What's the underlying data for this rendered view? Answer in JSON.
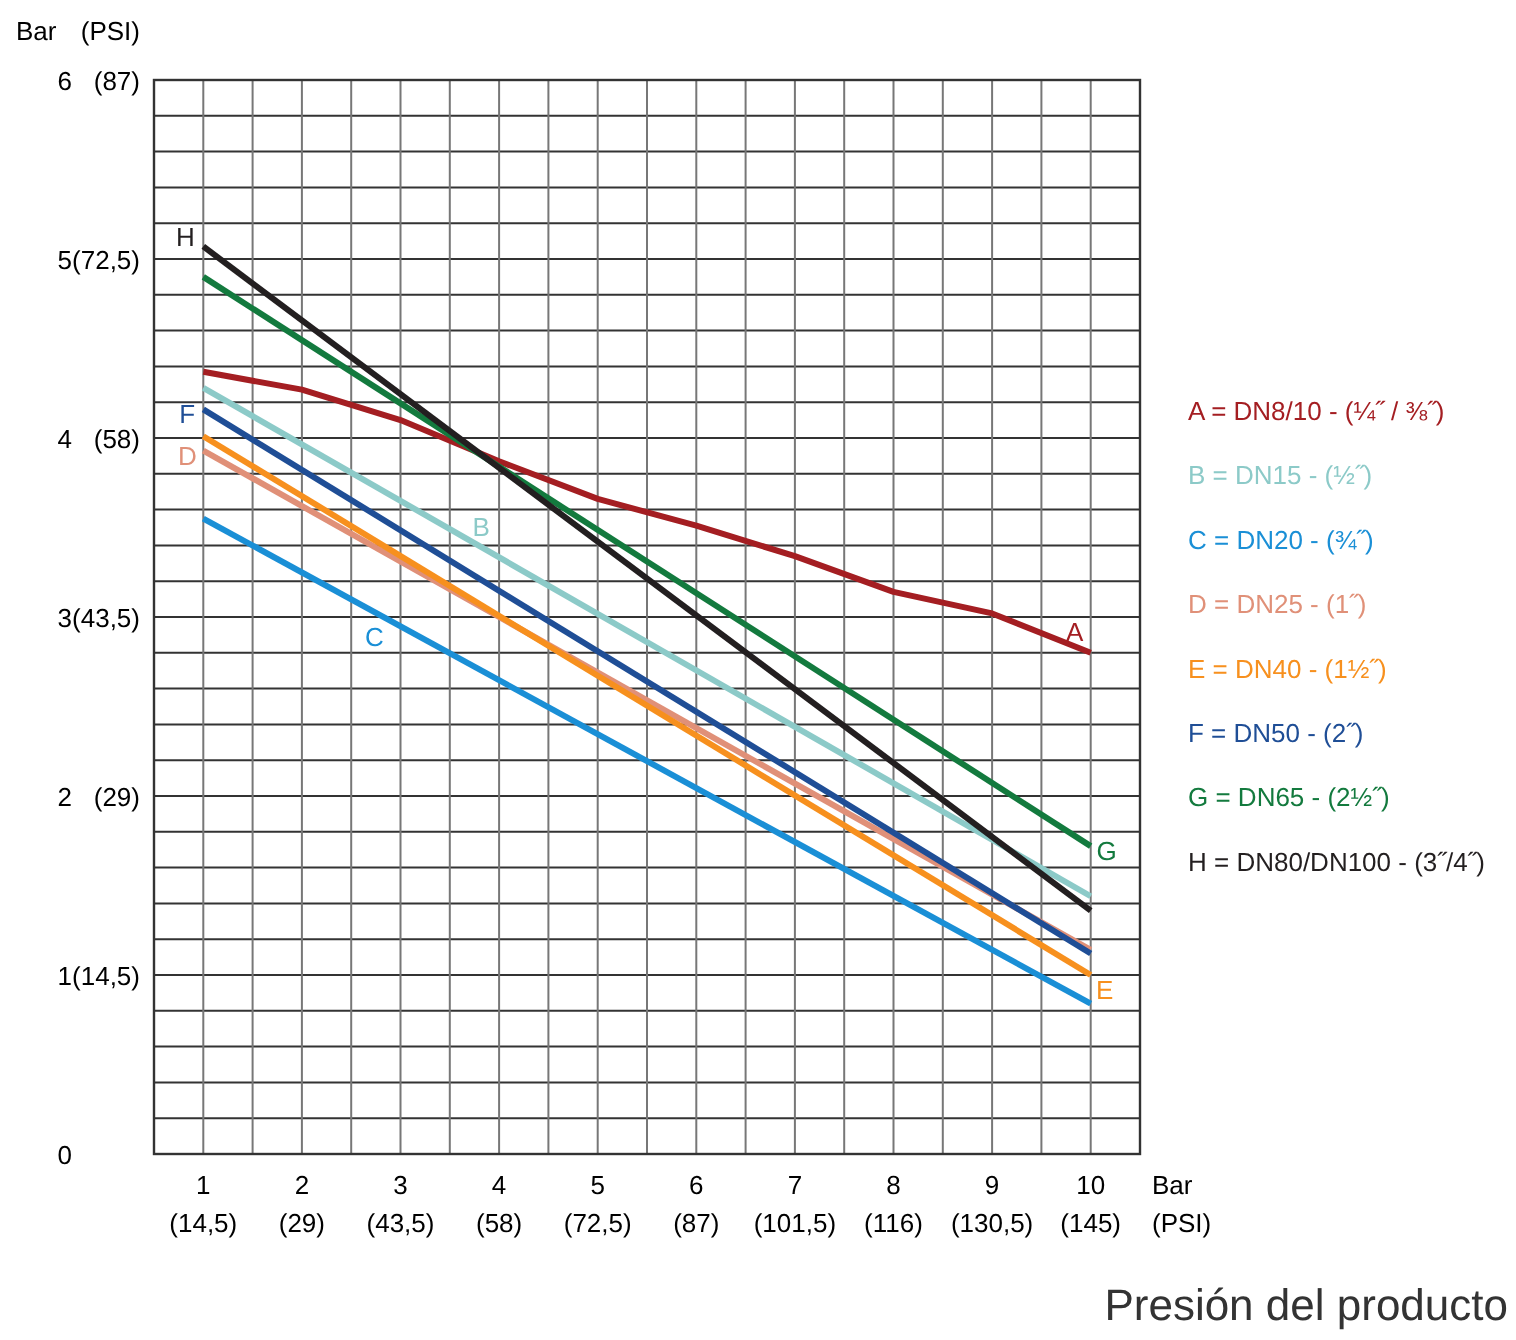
{
  "chart_data": {
    "type": "line",
    "xlabel": "Bar",
    "x2label": "(PSI)",
    "ylabel": "Bar",
    "y2label": "(PSI)",
    "xlim": [
      0.5,
      10.5
    ],
    "ylim": [
      0,
      6
    ],
    "x2lim": [
      7.25,
      152.25
    ],
    "y2lim": [
      0,
      87
    ],
    "xticks": [
      {
        "value": 0.5,
        "label": null
      },
      1,
      {
        "value": 1.5,
        "label": null
      },
      2,
      {
        "value": 2.5,
        "label": null
      },
      3,
      {
        "value": 3.5,
        "label": null
      },
      4,
      {
        "value": 4.5,
        "label": null
      },
      5,
      {
        "value": 5.5,
        "label": null
      },
      6,
      {
        "value": 6.5,
        "label": null
      },
      7,
      {
        "value": 7.5,
        "label": null
      },
      8,
      {
        "value": 8.5,
        "label": null
      },
      9,
      {
        "value": 9.5,
        "label": null
      },
      10,
      {
        "value": 10.5,
        "label": null
      }
    ],
    "x2ticks": [
      {
        "value": 14.5,
        "label": "(14,5)"
      },
      {
        "value": 29,
        "label": "(29)"
      },
      {
        "value": 43.5,
        "label": "(43,5)"
      },
      {
        "value": 58,
        "label": "(58)"
      },
      {
        "value": 72.5,
        "label": "(72,5)"
      },
      {
        "value": 87,
        "label": "(87)"
      },
      {
        "value": 101.5,
        "label": "(101,5)"
      },
      {
        "value": 116,
        "label": "(116)"
      },
      {
        "value": 130.5,
        "label": "(130,5)"
      },
      {
        "value": 145,
        "label": "(145)"
      }
    ],
    "yticks": [
      0,
      {
        "value": 0.2,
        "label": null
      },
      {
        "value": 0.4,
        "label": null
      },
      {
        "value": 0.6,
        "label": null
      },
      {
        "value": 0.8,
        "label": null
      },
      1,
      {
        "value": 1.2,
        "label": null
      },
      {
        "value": 1.4,
        "label": null
      },
      {
        "value": 1.6,
        "label": null
      },
      {
        "value": 1.8,
        "label": null
      },
      2,
      {
        "value": 2.2,
        "label": null
      },
      {
        "value": 2.4,
        "label": null
      },
      {
        "value": 2.6,
        "label": null
      },
      {
        "value": 2.8,
        "label": null
      },
      3,
      {
        "value": 3.2,
        "label": null
      },
      {
        "value": 3.4,
        "label": null
      },
      {
        "value": 3.6,
        "label": null
      },
      {
        "value": 3.8,
        "label": null
      },
      4,
      {
        "value": 4.2,
        "label": null
      },
      {
        "value": 4.4,
        "label": null
      },
      {
        "value": 4.6,
        "label": null
      },
      {
        "value": 4.8,
        "label": null
      },
      5,
      {
        "value": 5.2,
        "label": null
      },
      {
        "value": 5.4,
        "label": null
      },
      {
        "value": 5.6,
        "label": null
      },
      {
        "value": 5.8,
        "label": null
      },
      6
    ],
    "y2ticks": [
      {
        "value": 14.5,
        "label": "(14,5)"
      },
      {
        "value": 29,
        "label": "(29)"
      },
      {
        "value": 43.5,
        "label": "(43,5)"
      },
      {
        "value": 58,
        "label": "(58)"
      },
      {
        "value": 72.5,
        "label": "(72,5)"
      },
      {
        "value": 87,
        "label": "(87)"
      }
    ],
    "grid": true,
    "legend": "right",
    "marker": "none",
    "line_style": "solid",
    "series": [
      {
        "name": "A = DN8/10 - (¼˝ / ⅜˝)",
        "color": "#a41e22",
        "x": [
          1,
          2,
          3,
          4,
          5,
          6,
          7,
          8,
          9,
          10
        ],
        "values": [
          4.37,
          4.27,
          4.1,
          3.87,
          3.66,
          3.51,
          3.34,
          3.14,
          3.02,
          2.8
        ]
      },
      {
        "name": "B = DN15 - (½˝)",
        "color": "#8ccac8",
        "x": [
          1,
          10
        ],
        "values": [
          4.28,
          1.44
        ]
      },
      {
        "name": "C = DN20 - (¾˝)",
        "color": "#1a8fd6",
        "x": [
          1,
          10
        ],
        "values": [
          3.55,
          0.84
        ]
      },
      {
        "name": "D = DN25 - (1˝)",
        "color": "#e09078",
        "x": [
          1,
          10
        ],
        "values": [
          3.93,
          1.14
        ]
      },
      {
        "name": "E = DN40 - (1½˝)",
        "color": "#f7901e",
        "x": [
          1,
          10
        ],
        "values": [
          4.01,
          1.0
        ]
      },
      {
        "name": "F = DN50 - (2˝)",
        "color": "#1f4e96",
        "x": [
          1,
          10
        ],
        "values": [
          4.16,
          1.12
        ]
      },
      {
        "name": "G = DN65 - (2½˝)",
        "color": "#137a3e",
        "x": [
          1,
          10
        ],
        "values": [
          4.9,
          1.72
        ]
      },
      {
        "name": "H = DN80/DN100 - (3˝/4˝)",
        "color": "#231f20",
        "x": [
          1,
          10
        ],
        "values": [
          5.07,
          1.36
        ]
      }
    ],
    "annotations": [
      {
        "text": "A",
        "x": 10,
        "y": 2.8
      },
      {
        "text": "B",
        "x": 4,
        "y": 3.33
      },
      {
        "text": "C",
        "x": 3,
        "y": 2.95
      },
      {
        "text": "D",
        "x": 1,
        "y": 3.93
      },
      {
        "text": "E",
        "x": 10,
        "y": 1.0
      },
      {
        "text": "F",
        "x": 1,
        "y": 4.16
      },
      {
        "text": "G",
        "x": 10,
        "y": 1.72
      },
      {
        "text": "H",
        "x": 1,
        "y": 5.07
      },
      "Presión del producto"
    ]
  }
}
